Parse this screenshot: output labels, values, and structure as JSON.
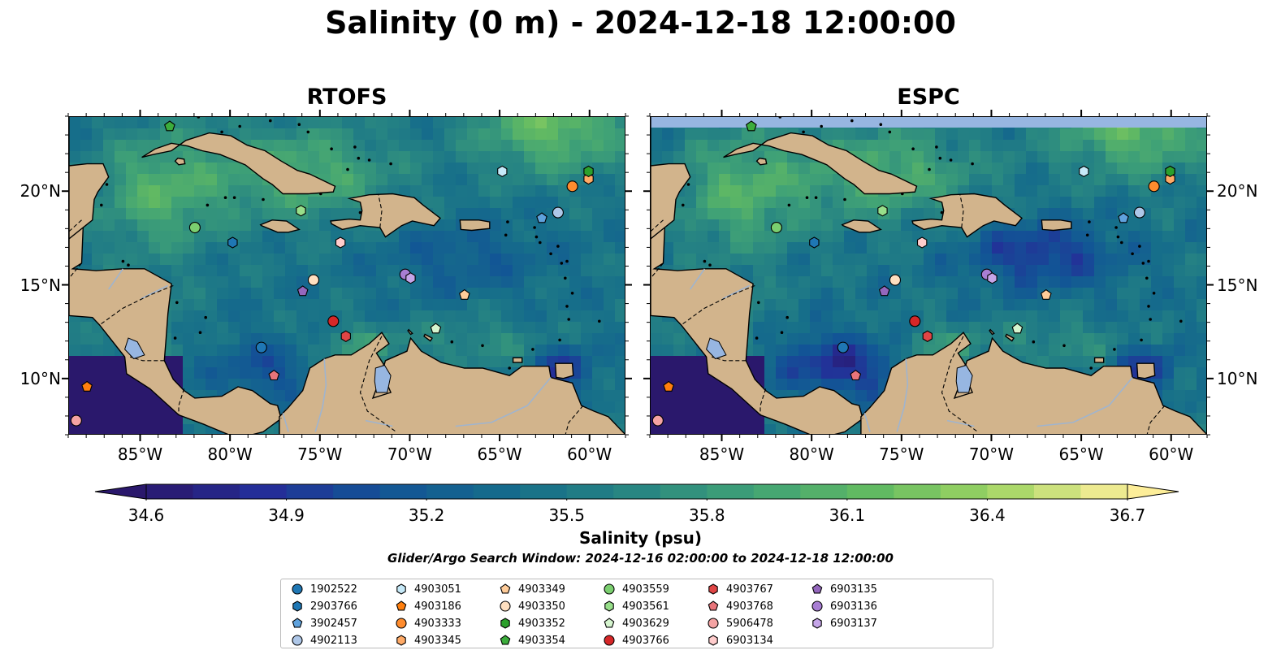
{
  "title": "Salinity (0 m) - 2024-12-18 12:00:00",
  "panels": [
    {
      "title": "RTOFS",
      "variant": "rtofs"
    },
    {
      "title": "ESPC",
      "variant": "espc"
    }
  ],
  "map": {
    "lon_range": [
      -89,
      -58
    ],
    "lat_range": [
      7,
      24
    ],
    "lat_ticks": [
      {
        "value": 20,
        "label": "20°N"
      },
      {
        "value": 15,
        "label": "15°N"
      },
      {
        "value": 10,
        "label": "10°N"
      }
    ],
    "lon_ticks": [
      {
        "value": -85,
        "label": "85°W"
      },
      {
        "value": -80,
        "label": "80°W"
      },
      {
        "value": -75,
        "label": "75°W"
      },
      {
        "value": -70,
        "label": "70°W"
      },
      {
        "value": -65,
        "label": "65°W"
      },
      {
        "value": -60,
        "label": "60°W"
      }
    ],
    "colors": {
      "land": "#d2b48c",
      "lakes": "#97b6e1",
      "rivers": "#9fb4cf",
      "nodata": "#97b6e1",
      "coast": "#000000"
    }
  },
  "colorbar": {
    "min": 34.6,
    "max": 36.7,
    "step": 0.1,
    "tick_labels": [
      "34.6",
      "34.9",
      "35.2",
      "35.5",
      "35.8",
      "36.1",
      "36.4",
      "36.7"
    ],
    "colormap": "haline",
    "label": "Salinity (psu)"
  },
  "search_window": "Glider/Argo Search Window: 2024-12-16 02:00:00 to 2024-12-18 12:00:00",
  "observations": [
    {
      "id": "1902522",
      "marker": "circle",
      "color": "#1f77b4",
      "lon": -78.3,
      "lat": 11.7
    },
    {
      "id": "2903766",
      "marker": "hexagon",
      "color": "#1f77b4",
      "lon": -79.9,
      "lat": 17.3
    },
    {
      "id": "3902457",
      "marker": "pentagon",
      "color": "#5fa2dd",
      "lon": -62.7,
      "lat": 18.6
    },
    {
      "id": "4902113",
      "marker": "circle",
      "color": "#aec7e8",
      "lon": -61.8,
      "lat": 18.9
    },
    {
      "id": "4903051",
      "marker": "hexagon",
      "color": "#c6e9f8",
      "lon": -64.9,
      "lat": 21.1
    },
    {
      "id": "4903186",
      "marker": "pentagon",
      "color": "#ff7f0e",
      "lon": -88.0,
      "lat": 9.6
    },
    {
      "id": "4903333",
      "marker": "circle",
      "color": "#ff8c2e",
      "lon": -61.0,
      "lat": 20.3
    },
    {
      "id": "4903345",
      "marker": "hexagon",
      "color": "#ffaa66",
      "lon": -60.1,
      "lat": 20.7
    },
    {
      "id": "4903349",
      "marker": "pentagon",
      "color": "#ffcc99",
      "lon": -67.0,
      "lat": 14.5
    },
    {
      "id": "4903350",
      "marker": "circle",
      "color": "#ffe0c0",
      "lon": -75.4,
      "lat": 15.3
    },
    {
      "id": "4903352",
      "marker": "hexagon",
      "color": "#2ca02c",
      "lon": -60.1,
      "lat": 21.1
    },
    {
      "id": "4903354",
      "marker": "pentagon",
      "color": "#3cad3c",
      "lon": -83.4,
      "lat": 23.5
    },
    {
      "id": "4903559",
      "marker": "circle",
      "color": "#7bcf6f",
      "lon": -82.0,
      "lat": 18.1
    },
    {
      "id": "4903561",
      "marker": "hexagon",
      "color": "#98df8a",
      "lon": -76.1,
      "lat": 19.0
    },
    {
      "id": "4903629",
      "marker": "pentagon",
      "color": "#d6f5cf",
      "lon": -68.6,
      "lat": 12.7
    },
    {
      "id": "4903766",
      "marker": "circle",
      "color": "#d62728",
      "lon": -74.3,
      "lat": 13.1
    },
    {
      "id": "4903767",
      "marker": "hexagon",
      "color": "#e04545",
      "lon": -73.6,
      "lat": 12.3
    },
    {
      "id": "4903768",
      "marker": "pentagon",
      "color": "#e8747a",
      "lon": -77.6,
      "lat": 10.2
    },
    {
      "id": "5906478",
      "marker": "circle",
      "color": "#f4a3a3",
      "lon": -88.6,
      "lat": 7.8
    },
    {
      "id": "6903134",
      "marker": "hexagon",
      "color": "#ffcccc",
      "lon": -73.9,
      "lat": 17.3
    },
    {
      "id": "6903135",
      "marker": "pentagon",
      "color": "#9467bd",
      "lon": -76.0,
      "lat": 14.7
    },
    {
      "id": "6903136",
      "marker": "circle",
      "color": "#a87ed3",
      "lon": -70.3,
      "lat": 15.6
    },
    {
      "id": "6903137",
      "marker": "hexagon",
      "color": "#c5a5e8",
      "lon": -70.0,
      "lat": 15.4
    }
  ]
}
